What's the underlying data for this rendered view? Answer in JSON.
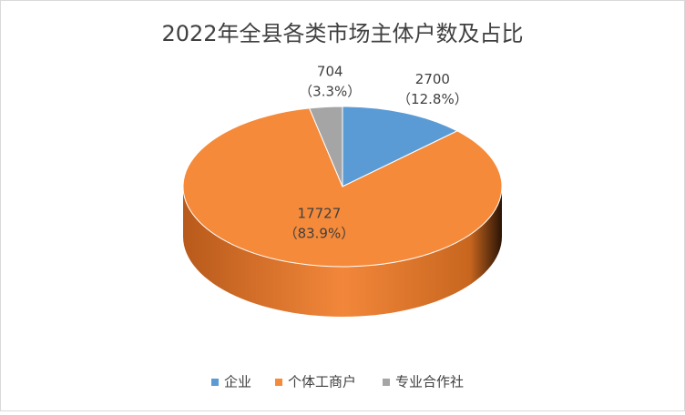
{
  "chart_data": {
    "type": "pie",
    "title": "2022年全县各类市场主体户数及占比",
    "categories": [
      "企业",
      "个体工商户",
      "专业合作社"
    ],
    "values": [
      2700,
      17727,
      704
    ],
    "percent_labels": [
      "（12.8%）",
      "（83.9%）",
      "（3.3%）"
    ],
    "colors": [
      "#5b9bd5",
      "#f58a3a",
      "#a5a5a5"
    ],
    "legend": "bottom"
  }
}
